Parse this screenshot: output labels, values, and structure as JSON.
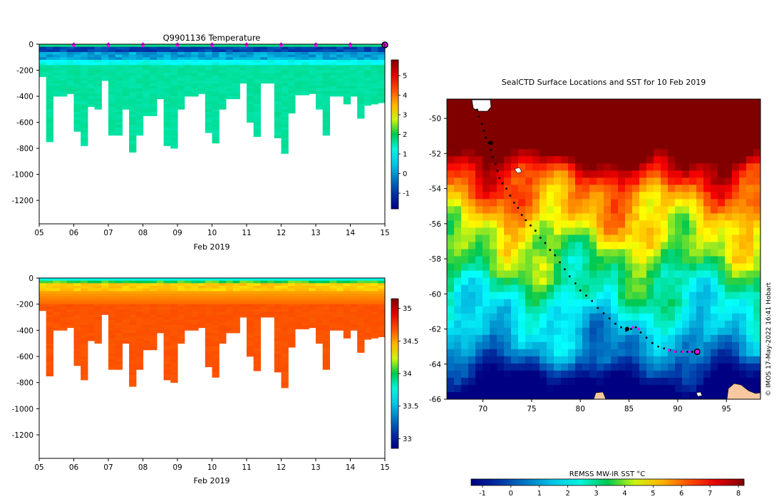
{
  "chart_data": [
    {
      "id": "temperature",
      "type": "heatmap",
      "title": "Q9901136  Temperature",
      "xlabel": "Feb 2019",
      "ylabel": "",
      "x_ticks": [
        "05",
        "06",
        "07",
        "08",
        "09",
        "10",
        "11",
        "12",
        "13",
        "14",
        "15"
      ],
      "x_range": [
        5,
        15
      ],
      "y_ticks": [
        0,
        -200,
        -400,
        -600,
        -800,
        -1000,
        -1200
      ],
      "y_range": [
        -1380,
        0
      ],
      "colorbar": {
        "ticks": [
          -1,
          0,
          1,
          2,
          3,
          4,
          5
        ],
        "range": [
          -1.8,
          5.8
        ]
      },
      "profile_bottoms_m": [
        250,
        750,
        400,
        400,
        380,
        670,
        780,
        480,
        500,
        280,
        700,
        700,
        500,
        830,
        700,
        550,
        550,
        420,
        780,
        800,
        500,
        400,
        400,
        380,
        680,
        760,
        500,
        420,
        420,
        300,
        600,
        710,
        300,
        300,
        720,
        840,
        530,
        390,
        390,
        380,
        500,
        700,
        400,
        400,
        460,
        400,
        570,
        470,
        460,
        450
      ],
      "surface_markers_day": [
        6,
        7,
        8,
        9,
        10,
        11,
        12,
        13,
        14
      ],
      "current_position_day": 15
    },
    {
      "id": "salinity",
      "type": "heatmap",
      "title": "",
      "xlabel": "Feb 2019",
      "ylabel": "",
      "x_ticks": [
        "05",
        "06",
        "07",
        "08",
        "09",
        "10",
        "11",
        "12",
        "13",
        "14",
        "15"
      ],
      "x_range": [
        5,
        15
      ],
      "y_ticks": [
        0,
        -200,
        -400,
        -600,
        -800,
        -1000,
        -1200
      ],
      "y_range": [
        -1380,
        0
      ],
      "colorbar": {
        "ticks": [
          "33",
          "33.5",
          "34",
          "34.5",
          "35"
        ],
        "range": [
          32.85,
          35.15
        ]
      },
      "profile_bottoms_m": [
        250,
        750,
        400,
        400,
        380,
        670,
        780,
        480,
        500,
        280,
        700,
        700,
        500,
        830,
        700,
        550,
        550,
        420,
        780,
        800,
        500,
        400,
        400,
        380,
        680,
        760,
        500,
        420,
        420,
        300,
        600,
        710,
        300,
        300,
        720,
        840,
        530,
        390,
        390,
        380,
        500,
        700,
        400,
        400,
        460,
        400,
        570,
        470,
        460,
        450
      ]
    },
    {
      "id": "map",
      "type": "heatmap",
      "title": "SealCTD Surface Locations and SST for 10 Feb 2019",
      "xlabel": "",
      "ylabel": "",
      "x_ticks": [
        70,
        75,
        80,
        85,
        90,
        95
      ],
      "x_range": [
        66.3,
        98.5
      ],
      "y_ticks": [
        -50,
        -52,
        -54,
        -56,
        -58,
        -60,
        -62,
        -64,
        -66
      ],
      "y_range": [
        -66,
        -48.9
      ],
      "colorbar_label": "REMSS MW-IR SST °C",
      "colorbar": {
        "ticks": [
          -1,
          0,
          1,
          2,
          3,
          4,
          5,
          6,
          7,
          8
        ],
        "range": [
          -1.4,
          8.2
        ]
      },
      "track_points": [
        [
          69.4,
          -49.5
        ],
        [
          69.6,
          -49.9
        ],
        [
          69.9,
          -50.3
        ],
        [
          70.1,
          -50.7
        ],
        [
          70.3,
          -51.1
        ],
        [
          70.6,
          -51.4
        ],
        [
          70.8,
          -51.8
        ],
        [
          71.0,
          -52.2
        ],
        [
          71.3,
          -52.6
        ],
        [
          71.5,
          -53.0
        ],
        [
          71.7,
          -53.4
        ],
        [
          72.0,
          -53.7
        ],
        [
          72.4,
          -54.0
        ],
        [
          72.8,
          -54.4
        ],
        [
          73.2,
          -54.8
        ],
        [
          73.6,
          -55.1
        ],
        [
          74.0,
          -55.5
        ],
        [
          74.4,
          -55.8
        ],
        [
          74.9,
          -56.1
        ],
        [
          75.4,
          -56.4
        ],
        [
          75.9,
          -56.8
        ],
        [
          76.4,
          -57.1
        ],
        [
          76.9,
          -57.5
        ],
        [
          77.4,
          -57.8
        ],
        [
          77.9,
          -58.2
        ],
        [
          78.4,
          -58.6
        ],
        [
          78.9,
          -59.0
        ],
        [
          79.5,
          -59.4
        ],
        [
          80.0,
          -59.8
        ],
        [
          80.6,
          -60.1
        ],
        [
          81.2,
          -60.4
        ],
        [
          81.8,
          -60.8
        ],
        [
          82.4,
          -61.1
        ],
        [
          83.0,
          -61.4
        ],
        [
          83.6,
          -61.7
        ],
        [
          84.2,
          -61.9
        ],
        [
          84.7,
          -62.1
        ],
        [
          85.2,
          -62.0
        ],
        [
          85.7,
          -61.9
        ],
        [
          86.2,
          -62.2
        ],
        [
          86.8,
          -62.5
        ],
        [
          87.4,
          -62.8
        ],
        [
          88.0,
          -63.0
        ],
        [
          88.6,
          -63.1
        ],
        [
          89.2,
          -63.2
        ],
        [
          89.8,
          -63.3
        ],
        [
          90.4,
          -63.3
        ],
        [
          91.0,
          -63.3
        ],
        [
          91.5,
          -63.3
        ]
      ],
      "magenta_points": [
        [
          85.4,
          -61.9
        ],
        [
          86.0,
          -62.0
        ],
        [
          89.1,
          -63.2
        ],
        [
          89.7,
          -63.3
        ],
        [
          90.5,
          -63.3
        ],
        [
          91.2,
          -63.3
        ]
      ],
      "big_markers": [
        [
          70.8,
          -51.4
        ],
        [
          84.8,
          -62.0
        ]
      ],
      "current_position": [
        92.0,
        -63.3
      ],
      "credit": "© IMOS 17-May-2022 16:41 Hobart"
    }
  ]
}
